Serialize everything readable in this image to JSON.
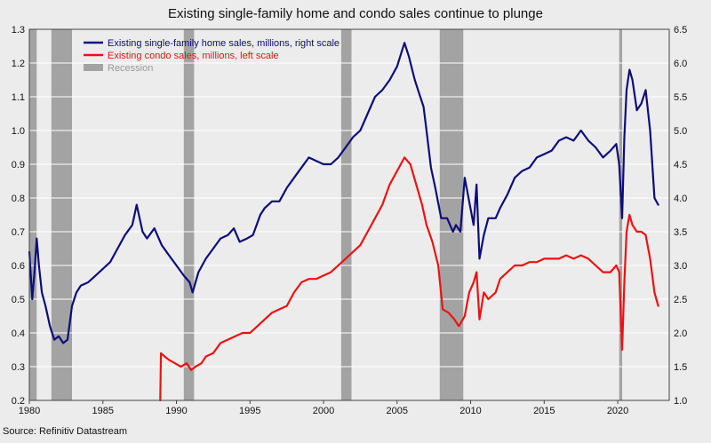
{
  "chart_data": {
    "type": "line",
    "title": "Existing single-family home and condo sales continue to plunge",
    "source": "Source: Refinitiv Datastream",
    "x_axis": {
      "range": [
        1980,
        2023.5
      ],
      "ticks": [
        1980,
        1985,
        1990,
        1995,
        2000,
        2005,
        2010,
        2015,
        2020
      ]
    },
    "y_left": {
      "range": [
        0.2,
        1.3
      ],
      "ticks": [
        "0.2",
        "0.3",
        "0.4",
        "0.5",
        "0.6",
        "0.7",
        "0.8",
        "0.9",
        "1.0",
        "1.1",
        "1.2",
        "1.3"
      ]
    },
    "y_right": {
      "range": [
        1.0,
        6.5
      ],
      "ticks": [
        "1.0",
        "1.5",
        "2.0",
        "2.5",
        "3.0",
        "3.5",
        "4.0",
        "4.5",
        "5.0",
        "5.5",
        "6.0",
        "6.5"
      ]
    },
    "grid": true,
    "legend": {
      "position": "top-left"
    },
    "recessions": [
      [
        1980.0,
        1980.5
      ],
      [
        1981.5,
        1982.9
      ],
      [
        1990.5,
        1991.2
      ],
      [
        2001.2,
        2001.9
      ],
      [
        2007.9,
        2009.5
      ],
      [
        2020.1,
        2020.3
      ]
    ],
    "series": [
      {
        "name": "Existing single-family home sales, millions, right scale",
        "axis": "right",
        "color": "#0d0d7a",
        "x": [
          1980.0,
          1980.2,
          1980.35,
          1980.5,
          1980.65,
          1980.85,
          1981.1,
          1981.4,
          1981.7,
          1982.0,
          1982.3,
          1982.6,
          1982.9,
          1983.2,
          1983.5,
          1984.0,
          1984.5,
          1985.0,
          1985.5,
          1986.0,
          1986.5,
          1987.0,
          1987.3,
          1987.7,
          1988.0,
          1988.5,
          1989.0,
          1989.5,
          1990.0,
          1990.5,
          1990.9,
          1991.1,
          1991.5,
          1992.0,
          1992.5,
          1993.0,
          1993.5,
          1993.9,
          1994.3,
          1994.8,
          1995.2,
          1995.7,
          1996.0,
          1996.5,
          1997.0,
          1997.5,
          1998.0,
          1998.5,
          1999.0,
          1999.5,
          2000.0,
          2000.5,
          2001.0,
          2001.5,
          2002.0,
          2002.5,
          2003.0,
          2003.5,
          2004.0,
          2004.5,
          2005.0,
          2005.5,
          2005.8,
          2006.2,
          2006.5,
          2006.8,
          2007.0,
          2007.3,
          2007.6,
          2008.0,
          2008.4,
          2008.8,
          2009.0,
          2009.3,
          2009.6,
          2009.9,
          2010.2,
          2010.4,
          2010.6,
          2010.9,
          2011.2,
          2011.7,
          2012.0,
          2012.5,
          2013.0,
          2013.5,
          2014.0,
          2014.5,
          2015.0,
          2015.5,
          2016.0,
          2016.5,
          2017.0,
          2017.5,
          2018.0,
          2018.5,
          2019.0,
          2019.5,
          2019.9,
          2020.1,
          2020.3,
          2020.45,
          2020.6,
          2020.8,
          2021.0,
          2021.3,
          2021.6,
          2021.9,
          2022.2,
          2022.5,
          2022.75
        ],
        "values": [
          3.2,
          2.5,
          2.9,
          3.4,
          3.0,
          2.6,
          2.4,
          2.1,
          1.9,
          1.95,
          1.85,
          1.9,
          2.4,
          2.6,
          2.7,
          2.75,
          2.85,
          2.95,
          3.05,
          3.25,
          3.45,
          3.6,
          3.9,
          3.5,
          3.4,
          3.55,
          3.3,
          3.15,
          3.0,
          2.85,
          2.75,
          2.6,
          2.9,
          3.1,
          3.25,
          3.4,
          3.45,
          3.55,
          3.35,
          3.4,
          3.45,
          3.75,
          3.85,
          3.95,
          3.95,
          4.15,
          4.3,
          4.45,
          4.6,
          4.55,
          4.5,
          4.5,
          4.6,
          4.75,
          4.9,
          5.0,
          5.25,
          5.5,
          5.6,
          5.75,
          5.95,
          6.3,
          6.1,
          5.75,
          5.55,
          5.35,
          5.0,
          4.45,
          4.15,
          3.7,
          3.7,
          3.5,
          3.6,
          3.5,
          4.3,
          3.95,
          3.6,
          4.2,
          3.1,
          3.45,
          3.7,
          3.7,
          3.85,
          4.05,
          4.3,
          4.4,
          4.45,
          4.6,
          4.65,
          4.7,
          4.85,
          4.9,
          4.85,
          5.0,
          4.85,
          4.75,
          4.6,
          4.7,
          4.8,
          4.5,
          3.7,
          4.9,
          5.6,
          5.9,
          5.75,
          5.3,
          5.4,
          5.6,
          5.0,
          4.0,
          3.9
        ]
      },
      {
        "name": "Existing condo sales, millions, left scale",
        "axis": "left",
        "color": "#ee1111",
        "x": [
          1988.9,
          1988.95,
          1989.2,
          1989.5,
          1989.9,
          1990.3,
          1990.7,
          1991.0,
          1991.3,
          1991.7,
          1992.0,
          1992.5,
          1993.0,
          1993.5,
          1994.0,
          1994.5,
          1995.0,
          1995.5,
          1996.0,
          1996.5,
          1997.0,
          1997.5,
          1998.0,
          1998.5,
          1999.0,
          1999.5,
          2000.0,
          2000.5,
          2001.0,
          2001.5,
          2002.0,
          2002.5,
          2003.0,
          2003.5,
          2004.0,
          2004.5,
          2005.0,
          2005.5,
          2005.9,
          2006.3,
          2006.7,
          2007.0,
          2007.4,
          2007.8,
          2008.1,
          2008.5,
          2008.9,
          2009.2,
          2009.6,
          2009.9,
          2010.2,
          2010.4,
          2010.6,
          2010.9,
          2011.2,
          2011.7,
          2012.0,
          2012.5,
          2013.0,
          2013.5,
          2014.0,
          2014.5,
          2015.0,
          2015.5,
          2016.0,
          2016.5,
          2017.0,
          2017.5,
          2018.0,
          2018.5,
          2019.0,
          2019.5,
          2019.9,
          2020.1,
          2020.3,
          2020.45,
          2020.6,
          2020.8,
          2021.0,
          2021.3,
          2021.6,
          2021.9,
          2022.2,
          2022.5,
          2022.75
        ],
        "values": [
          0.2,
          0.34,
          0.33,
          0.32,
          0.31,
          0.3,
          0.31,
          0.29,
          0.3,
          0.31,
          0.33,
          0.34,
          0.37,
          0.38,
          0.39,
          0.4,
          0.4,
          0.42,
          0.44,
          0.46,
          0.47,
          0.48,
          0.52,
          0.55,
          0.56,
          0.56,
          0.57,
          0.58,
          0.6,
          0.62,
          0.64,
          0.66,
          0.7,
          0.74,
          0.78,
          0.84,
          0.88,
          0.92,
          0.9,
          0.84,
          0.78,
          0.72,
          0.67,
          0.6,
          0.47,
          0.46,
          0.44,
          0.42,
          0.45,
          0.52,
          0.55,
          0.58,
          0.44,
          0.52,
          0.5,
          0.52,
          0.56,
          0.58,
          0.6,
          0.6,
          0.61,
          0.61,
          0.62,
          0.62,
          0.62,
          0.63,
          0.62,
          0.63,
          0.62,
          0.6,
          0.58,
          0.58,
          0.6,
          0.58,
          0.35,
          0.55,
          0.7,
          0.75,
          0.72,
          0.7,
          0.7,
          0.69,
          0.62,
          0.52,
          0.48
        ]
      },
      {
        "name": "Recession",
        "type": "band",
        "color": "#a3a3a3"
      }
    ]
  }
}
